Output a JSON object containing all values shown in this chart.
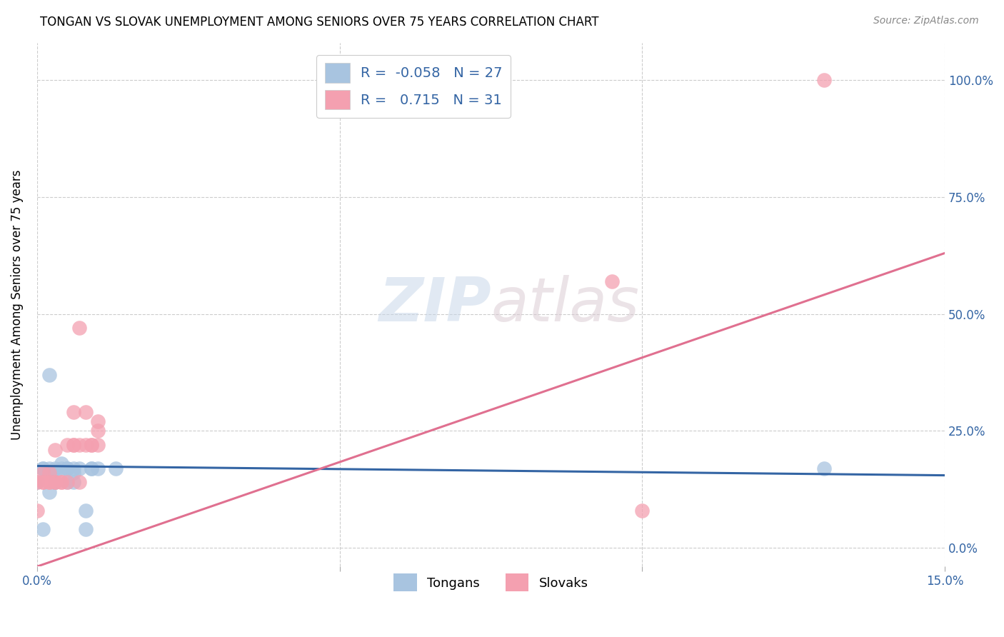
{
  "title": "TONGAN VS SLOVAK UNEMPLOYMENT AMONG SENIORS OVER 75 YEARS CORRELATION CHART",
  "source": "Source: ZipAtlas.com",
  "ylabel": "Unemployment Among Seniors over 75 years",
  "tongan_R": -0.058,
  "tongan_N": 27,
  "slovak_R": 0.715,
  "slovak_N": 31,
  "tongan_color": "#a8c4e0",
  "slovak_color": "#f4a0b0",
  "tongan_line_color": "#3465a4",
  "slovak_line_color": "#e07090",
  "watermark_color": "#d0dff0",
  "xmin": 0.0,
  "xmax": 0.15,
  "ymin": -0.04,
  "ymax": 1.08,
  "x_ticks": [
    0.0,
    0.05,
    0.1,
    0.15
  ],
  "y_ticks_right": [
    0.0,
    0.25,
    0.5,
    0.75,
    1.0
  ],
  "tongan_x": [
    0.0,
    0.001,
    0.001,
    0.001,
    0.002,
    0.002,
    0.002,
    0.003,
    0.003,
    0.003,
    0.003,
    0.004,
    0.004,
    0.005,
    0.005,
    0.005,
    0.006,
    0.006,
    0.006,
    0.007,
    0.008,
    0.008,
    0.009,
    0.009,
    0.01,
    0.013,
    0.13
  ],
  "tongan_y": [
    0.14,
    0.04,
    0.17,
    0.17,
    0.12,
    0.17,
    0.37,
    0.17,
    0.14,
    0.14,
    0.16,
    0.17,
    0.18,
    0.14,
    0.17,
    0.17,
    0.14,
    0.16,
    0.17,
    0.17,
    0.04,
    0.08,
    0.17,
    0.17,
    0.17,
    0.17,
    0.17
  ],
  "slovak_x": [
    0.0,
    0.0,
    0.001,
    0.001,
    0.001,
    0.002,
    0.002,
    0.002,
    0.003,
    0.003,
    0.003,
    0.004,
    0.004,
    0.005,
    0.005,
    0.006,
    0.006,
    0.006,
    0.007,
    0.007,
    0.007,
    0.008,
    0.008,
    0.009,
    0.009,
    0.01,
    0.01,
    0.01,
    0.095,
    0.1,
    0.13
  ],
  "slovak_y": [
    0.14,
    0.08,
    0.14,
    0.14,
    0.16,
    0.16,
    0.14,
    0.14,
    0.14,
    0.21,
    0.14,
    0.14,
    0.14,
    0.22,
    0.14,
    0.22,
    0.29,
    0.22,
    0.14,
    0.22,
    0.47,
    0.22,
    0.29,
    0.22,
    0.22,
    0.22,
    0.27,
    0.25,
    0.57,
    0.08,
    1.0
  ],
  "tongan_line_x": [
    0.0,
    0.15
  ],
  "tongan_line_y": [
    0.175,
    0.155
  ],
  "slovak_line_x": [
    0.0,
    0.15
  ],
  "slovak_line_y": [
    -0.04,
    0.63
  ]
}
